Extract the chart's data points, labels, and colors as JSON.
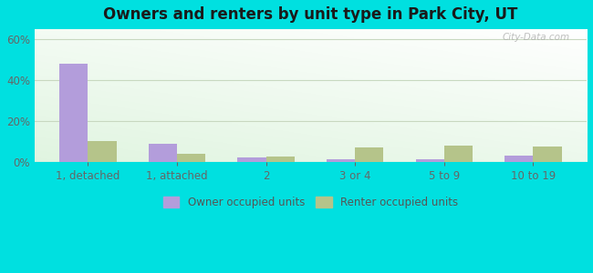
{
  "title": "Owners and renters by unit type in Park City, UT",
  "categories": [
    "1, detached",
    "1, attached",
    "2",
    "3 or 4",
    "5 to 9",
    "10 to 19"
  ],
  "owner_values": [
    48,
    9,
    2,
    1.5,
    1.5,
    3
  ],
  "renter_values": [
    10,
    4,
    2.5,
    7,
    8,
    7.5
  ],
  "owner_color": "#b39ddb",
  "renter_color": "#b5c48a",
  "ylim": [
    0,
    65
  ],
  "yticks": [
    0,
    20,
    40,
    60
  ],
  "ytick_labels": [
    "0%",
    "20%",
    "40%",
    "60%"
  ],
  "outer_background": "#00e0e0",
  "grid_color": "#c8d8c0",
  "bar_width": 0.32,
  "legend_labels": [
    "Owner occupied units",
    "Renter occupied units"
  ],
  "watermark": "City-Data.com",
  "title_fontsize": 12,
  "axis_fontsize": 8.5,
  "legend_fontsize": 8.5
}
